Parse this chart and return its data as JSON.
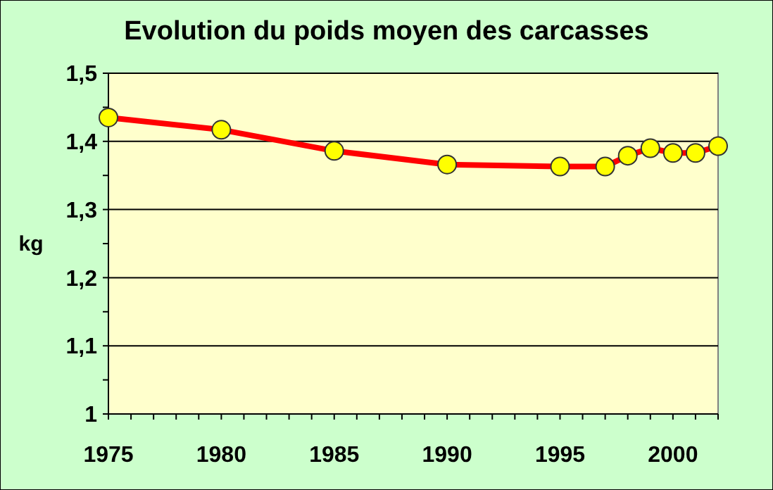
{
  "chart_data": {
    "type": "line",
    "title": "Evolution du poids moyen des carcasses",
    "ylabel": "kg",
    "x": [
      1975,
      1980,
      1985,
      1990,
      1995,
      1997,
      1998,
      1999,
      2000,
      2001,
      2002
    ],
    "series": [
      {
        "color": "#ff0000",
        "values": [
          1.435,
          1.417,
          1.386,
          1.366,
          1.363,
          1.363,
          1.379,
          1.39,
          1.383,
          1.383,
          1.393
        ]
      }
    ],
    "xlim": [
      1975,
      2002
    ],
    "xticks": [
      1975,
      {
        "value": 1976,
        "label": null
      },
      {
        "value": 1977,
        "label": null
      },
      {
        "value": 1978,
        "label": null
      },
      {
        "value": 1979,
        "label": null
      },
      1980,
      {
        "value": 1981,
        "label": null
      },
      {
        "value": 1982,
        "label": null
      },
      {
        "value": 1983,
        "label": null
      },
      {
        "value": 1984,
        "label": null
      },
      1985,
      {
        "value": 1986,
        "label": null
      },
      {
        "value": 1987,
        "label": null
      },
      {
        "value": 1988,
        "label": null
      },
      {
        "value": 1989,
        "label": null
      },
      1990,
      {
        "value": 1991,
        "label": null
      },
      {
        "value": 1992,
        "label": null
      },
      {
        "value": 1993,
        "label": null
      },
      {
        "value": 1994,
        "label": null
      },
      1995,
      {
        "value": 1996,
        "label": null
      },
      {
        "value": 1997,
        "label": null
      },
      {
        "value": 1998,
        "label": null
      },
      {
        "value": 1999,
        "label": null
      },
      2000,
      {
        "value": 2001,
        "label": null
      },
      {
        "value": 2002,
        "label": null
      }
    ],
    "ylim": [
      1,
      1.5
    ],
    "yticks": [
      {
        "value": 1,
        "label": "1"
      },
      {
        "value": 1.05,
        "label": null
      },
      {
        "value": 1.1,
        "label": "1,1"
      },
      {
        "value": 1.15,
        "label": null
      },
      {
        "value": 1.2,
        "label": "1,2"
      },
      {
        "value": 1.25,
        "label": null
      },
      {
        "value": 1.3,
        "label": "1,3"
      },
      {
        "value": 1.35,
        "label": null
      },
      {
        "value": 1.4,
        "label": "1,4"
      },
      {
        "value": 1.45,
        "label": null
      },
      {
        "value": 1.5,
        "label": "1,5"
      }
    ],
    "grid": "y",
    "marker": "circle",
    "line_style": "solid"
  }
}
